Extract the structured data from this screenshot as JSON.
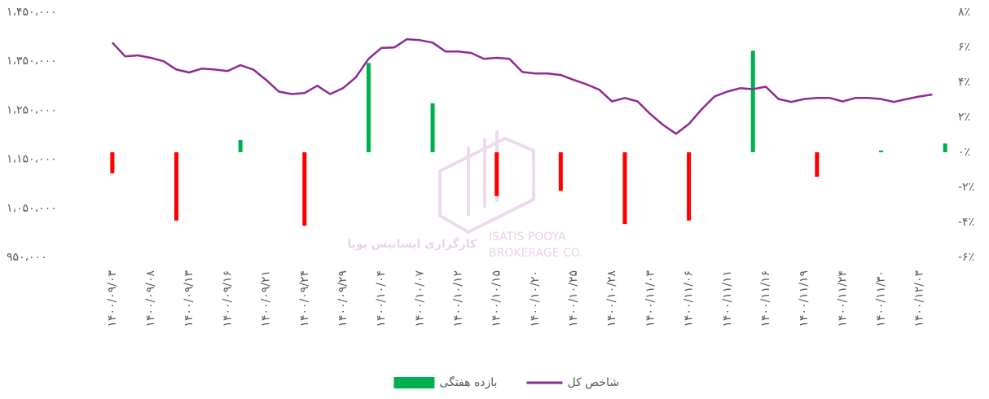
{
  "chart_data": {
    "type": "combo",
    "watermark": [
      "کارگزاری ایساتیس پویا",
      "ISATIS POOYA",
      "BROKERAGE CO."
    ],
    "categories": [
      "۱۴۰۰/۰۹/۰۳",
      null,
      null,
      "۱۴۰۰/۰۹/۰۸",
      null,
      null,
      "۱۴۰۰/۰۹/۱۳",
      null,
      null,
      "۱۴۰۰/۰۹/۱۶",
      null,
      null,
      "۱۴۰۰/۰۹/۲۱",
      null,
      null,
      "۱۴۰۰/۰۹/۲۴",
      null,
      null,
      "۱۴۰۰/۰۹/۲۹",
      null,
      null,
      "۱۴۰۰/۱۰/۰۴",
      null,
      null,
      "۱۴۰۰/۱۰/۰۷",
      null,
      null,
      "۱۴۰۰/۱۰/۱۲",
      null,
      null,
      "۱۴۰۰/۱۰/۱۵",
      null,
      null,
      "۱۴۰۰/۱۰/۲۰",
      null,
      null,
      "۱۴۰۰/۱۰/۲۵",
      null,
      null,
      "۱۴۰۰/۱۰/۲۸",
      null,
      null,
      "۱۴۰۰/۱۱/۰۳",
      null,
      null,
      "۱۴۰۰/۱۱/۰۶",
      null,
      null,
      "۱۴۰۰/۱۱/۱۱",
      null,
      null,
      "۱۴۰۰/۱۱/۱۶",
      null,
      null,
      "۱۴۰۰/۱۱/۱۹",
      null,
      null,
      "۱۴۰۰/۱۱/۲۴",
      null,
      null,
      "۱۴۰۰/۱۱/۳۰",
      null,
      null,
      "۱۴۰۰/۱۲/۰۳",
      null,
      null
    ],
    "series": [
      {
        "name": "بازده هفتگی",
        "type": "bar",
        "axis": "y2",
        "color": "#00b050",
        "negative_color": "#ff0000",
        "values": [
          -1.2,
          null,
          null,
          null,
          null,
          -3.9,
          null,
          null,
          null,
          null,
          0.7,
          null,
          null,
          null,
          null,
          -4.2,
          null,
          null,
          null,
          null,
          5.1,
          null,
          null,
          null,
          null,
          2.8,
          null,
          null,
          null,
          null,
          -2.5,
          null,
          null,
          null,
          null,
          -2.2,
          null,
          null,
          null,
          null,
          -4.1,
          null,
          null,
          null,
          null,
          -3.9,
          null,
          null,
          null,
          null,
          5.8,
          null,
          null,
          null,
          null,
          -1.4,
          null,
          null,
          null,
          null,
          0.1,
          null,
          null,
          null,
          null,
          0.5
        ]
      },
      {
        "name": "شاخص کل",
        "type": "line",
        "color": "#8e2a94",
        "values": [
          1388000,
          1360000,
          1362000,
          1357000,
          1350000,
          1333000,
          1327000,
          1335000,
          1333000,
          1330000,
          1342000,
          1333000,
          1312000,
          1288000,
          1283000,
          1285000,
          1300000,
          1283000,
          1295000,
          1317000,
          1355000,
          1377000,
          1378000,
          1395000,
          1393000,
          1388000,
          1370000,
          1370000,
          1367000,
          1355000,
          1357000,
          1355000,
          1328000,
          1325000,
          1325000,
          1322000,
          1312000,
          1303000,
          1292000,
          1268000,
          1275000,
          1268000,
          1242000,
          1220000,
          1202000,
          1222000,
          1252000,
          1278000,
          1288000,
          1295000,
          1293000,
          1298000,
          1273000,
          1267000,
          1273000,
          1275000,
          1275000,
          1268000,
          1275000,
          1275000,
          1273000,
          1267000,
          1273000,
          1278000,
          1282000,
          null
        ]
      }
    ],
    "ylim": [
      950000,
      1450000
    ],
    "yticks": [
      {
        "value": 950000,
        "label": "۹۵۰،۰۰۰"
      },
      {
        "value": 1050000,
        "label": "۱،۰۵۰،۰۰۰"
      },
      {
        "value": 1150000,
        "label": "۱،۱۵۰،۰۰۰"
      },
      {
        "value": 1250000,
        "label": "۱،۲۵۰،۰۰۰"
      },
      {
        "value": 1350000,
        "label": "۱،۳۵۰،۰۰۰"
      },
      {
        "value": 1450000,
        "label": "۱،۴۵۰،۰۰۰"
      }
    ],
    "y2lim": [
      -6,
      8
    ],
    "y2ticks": [
      {
        "value": -6,
        "label": "-۶٪"
      },
      {
        "value": -4,
        "label": "-۴٪"
      },
      {
        "value": -2,
        "label": "-۲٪"
      },
      {
        "value": 0,
        "label": "۰٪"
      },
      {
        "value": 2,
        "label": "۲٪"
      },
      {
        "value": 4,
        "label": "۴٪"
      },
      {
        "value": 6,
        "label": "۶٪"
      },
      {
        "value": 8,
        "label": "۸٪"
      }
    ],
    "grid": false,
    "legend": "bottom"
  }
}
